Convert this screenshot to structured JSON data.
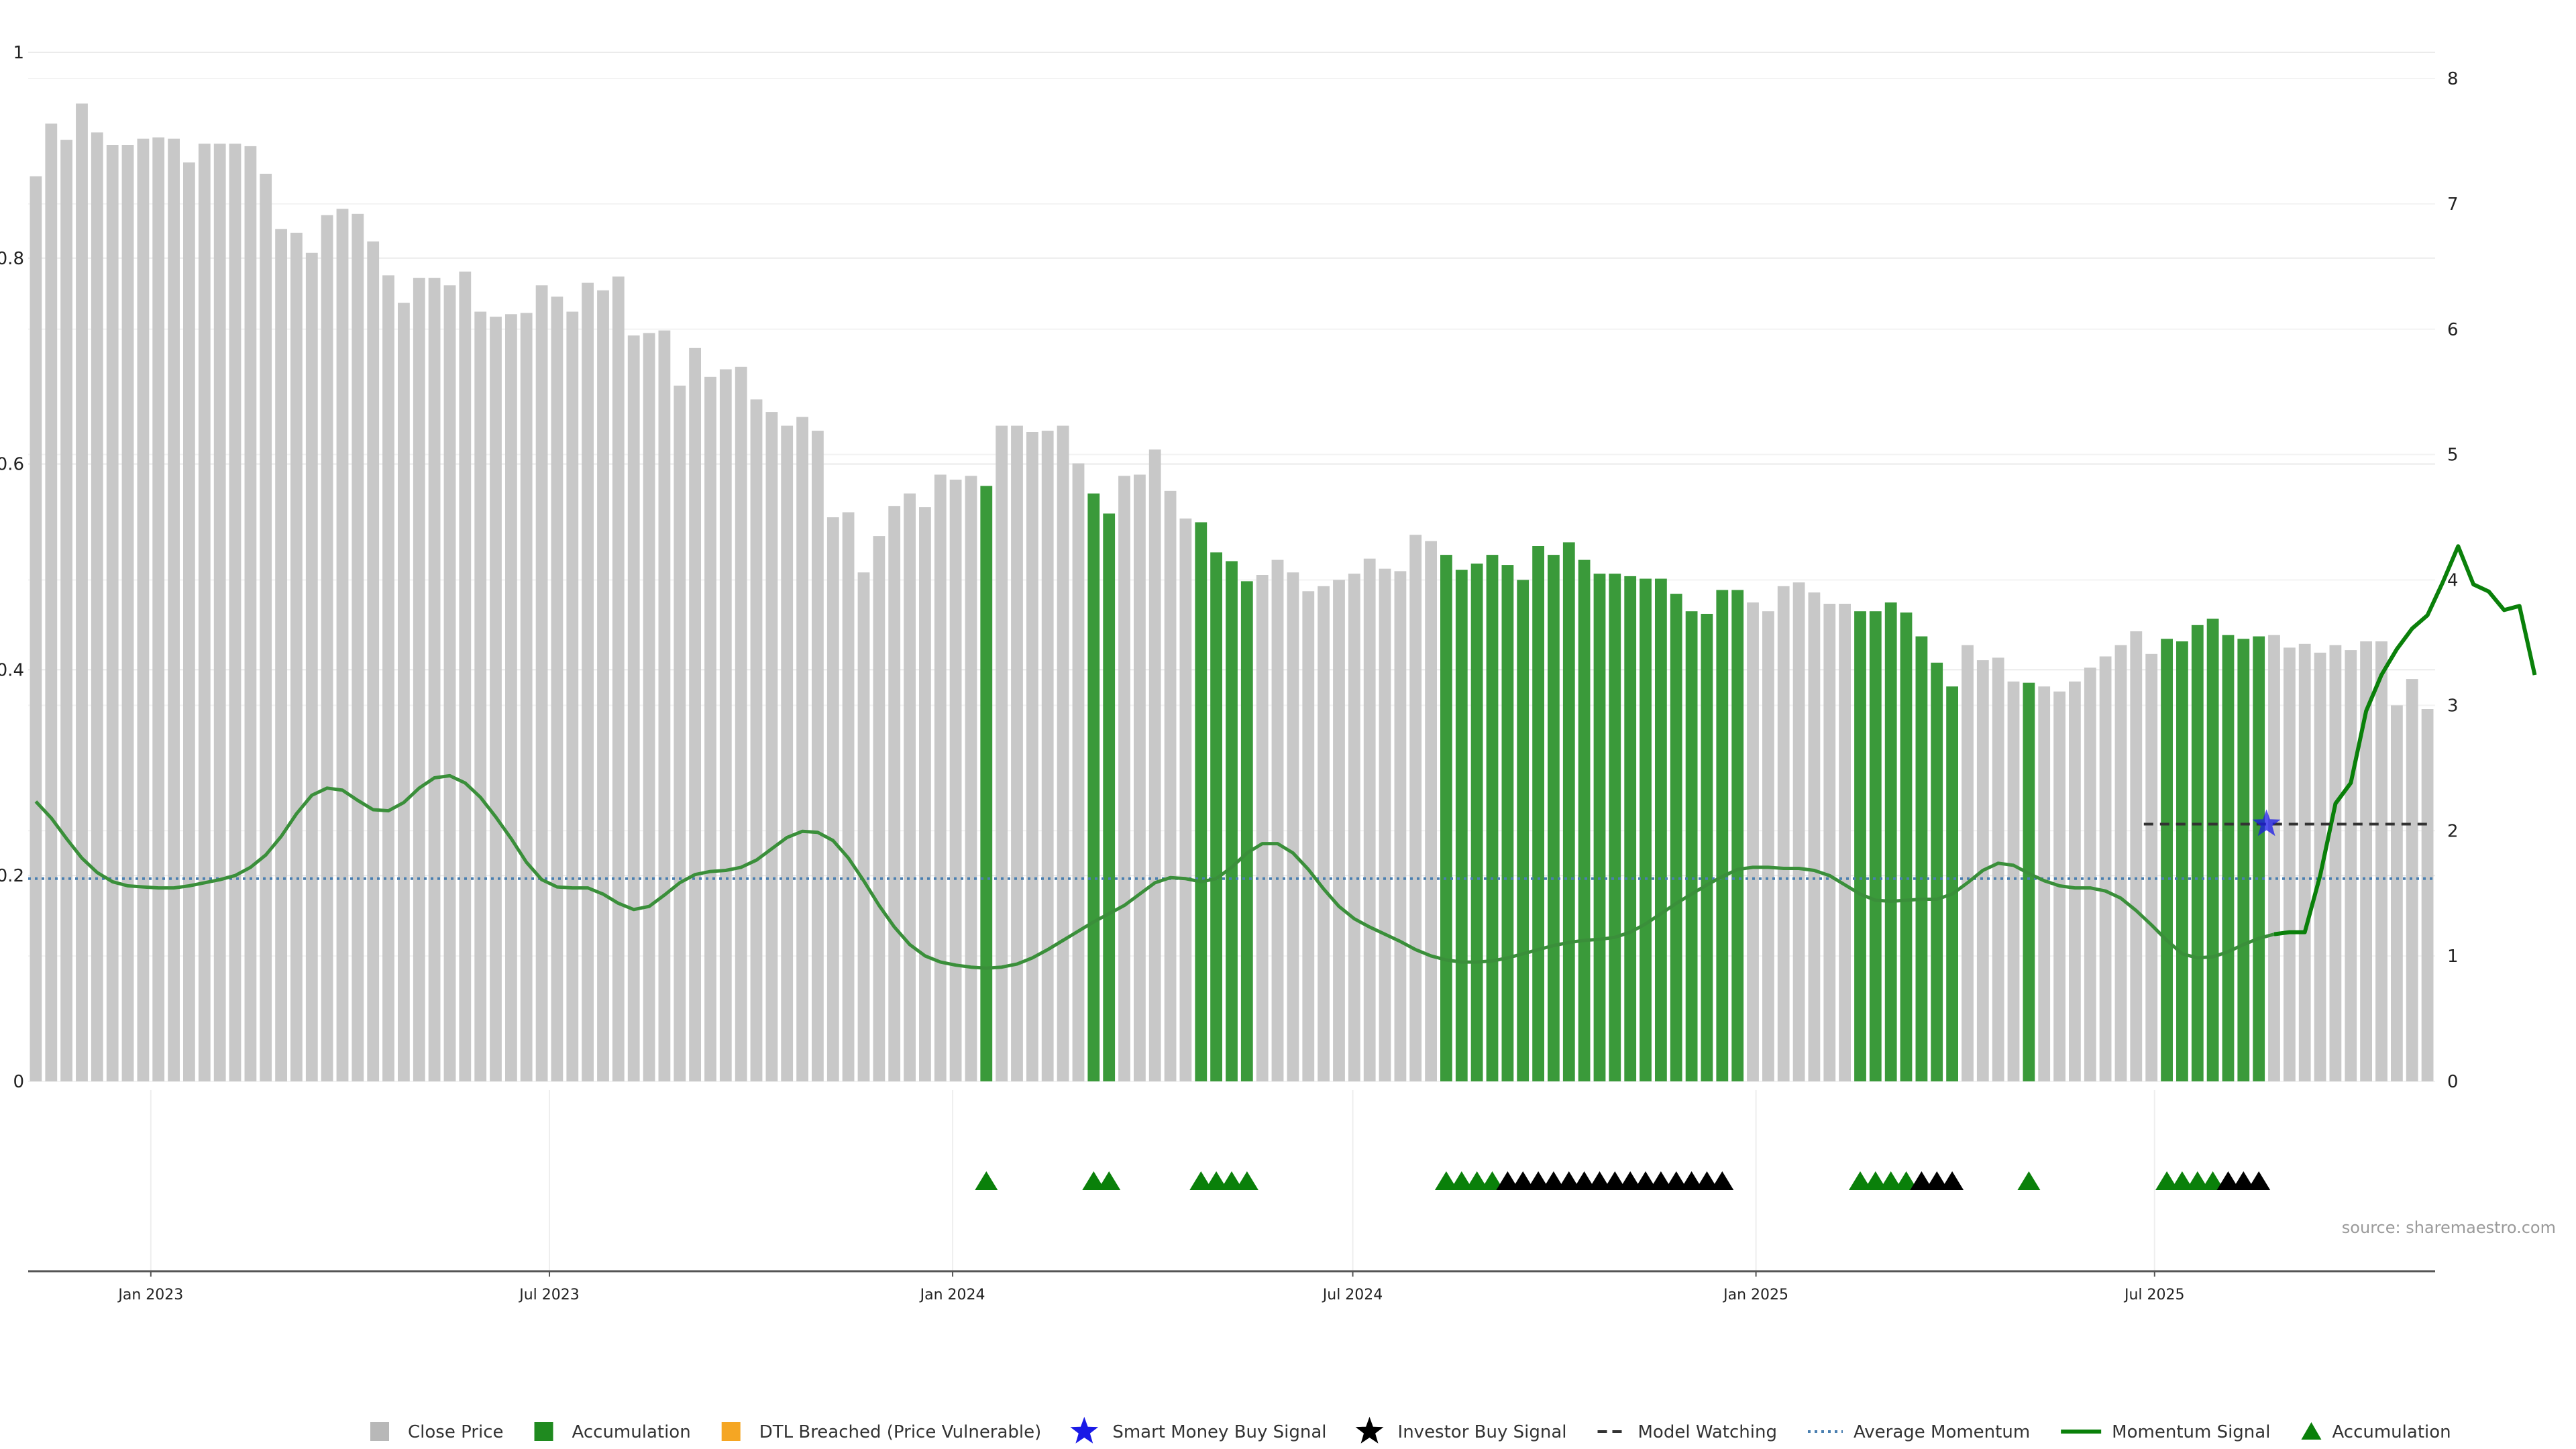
{
  "chart_data": {
    "type": "bar",
    "source_note": "source: sharemaestro.com",
    "left_axis": {
      "ylim": [
        0,
        1
      ],
      "ticks": [
        "0",
        "0.2",
        "0.4",
        "0.6",
        "0.8",
        "1"
      ]
    },
    "right_axis": {
      "ylim": [
        0,
        8
      ],
      "ticks": [
        "0",
        "1",
        "2",
        "3",
        "4",
        "5",
        "6",
        "7",
        "8"
      ]
    },
    "x_axis": {
      "ticks": [
        {
          "label": "Jan 2023",
          "index": 7.5
        },
        {
          "label": "Jul 2023",
          "index": 33.5
        },
        {
          "label": "Jan 2024",
          "index": 59.8
        },
        {
          "label": "Jul 2024",
          "index": 85.9
        },
        {
          "label": "Jan 2025",
          "index": 112.2
        },
        {
          "label": "Jul 2025",
          "index": 138.2
        }
      ]
    },
    "close_price": [
      7.22,
      7.64,
      7.51,
      7.8,
      7.57,
      7.47,
      7.47,
      7.52,
      7.53,
      7.52,
      7.33,
      7.48,
      7.48,
      7.48,
      7.46,
      7.24,
      6.8,
      6.77,
      6.61,
      6.91,
      6.96,
      6.92,
      6.7,
      6.43,
      6.21,
      6.41,
      6.41,
      6.35,
      6.46,
      6.14,
      6.1,
      6.12,
      6.13,
      6.35,
      6.26,
      6.14,
      6.37,
      6.31,
      6.42,
      5.95,
      5.97,
      5.99,
      5.55,
      5.85,
      5.62,
      5.68,
      5.7,
      5.44,
      5.34,
      5.23,
      5.3,
      5.19,
      4.5,
      4.54,
      4.06,
      4.35,
      4.59,
      4.69,
      4.58,
      4.84,
      4.8,
      4.83,
      4.75,
      5.23,
      5.23,
      5.18,
      5.19,
      5.23,
      4.93,
      4.69,
      4.53,
      4.83,
      4.84,
      5.04,
      4.71,
      4.49,
      4.46,
      4.22,
      4.15,
      3.99,
      4.04,
      4.16,
      4.06,
      3.91,
      3.95,
      4.0,
      4.05,
      4.17,
      4.09,
      4.07,
      4.36,
      4.31,
      4.2,
      4.08,
      4.13,
      4.2,
      4.12,
      4.0,
      4.27,
      4.2,
      4.3,
      4.16,
      4.05,
      4.05,
      4.03,
      4.01,
      4.01,
      3.89,
      3.75,
      3.73,
      3.92,
      3.92,
      3.82,
      3.75,
      3.95,
      3.98,
      3.9,
      3.81,
      3.81,
      3.75,
      3.75,
      3.82,
      3.74,
      3.55,
      3.34,
      3.15,
      3.48,
      3.36,
      3.38,
      3.19,
      3.18,
      3.15,
      3.11,
      3.19,
      3.3,
      3.39,
      3.48,
      3.59,
      3.41,
      3.53,
      3.51,
      3.64,
      3.69,
      3.56,
      3.53,
      3.55,
      3.56,
      3.46,
      3.49,
      3.42,
      3.48,
      3.44,
      3.51,
      3.51,
      3.0,
      3.21,
      2.97
    ],
    "accumulation_bars": [
      62,
      69,
      70,
      76,
      77,
      78,
      79,
      92,
      93,
      94,
      95,
      96,
      97,
      98,
      99,
      100,
      101,
      102,
      103,
      104,
      105,
      106,
      107,
      108,
      109,
      110,
      111,
      119,
      120,
      121,
      122,
      123,
      124,
      125,
      130,
      139,
      140,
      141,
      142,
      143,
      144,
      145
    ],
    "momentum_signal": [
      0.272,
      0.256,
      0.236,
      0.217,
      0.203,
      0.194,
      0.19,
      0.189,
      0.188,
      0.188,
      0.19,
      0.193,
      0.196,
      0.2,
      0.208,
      0.22,
      0.238,
      0.26,
      0.278,
      0.285,
      0.283,
      0.273,
      0.264,
      0.263,
      0.271,
      0.285,
      0.295,
      0.297,
      0.29,
      0.276,
      0.257,
      0.236,
      0.213,
      0.196,
      0.189,
      0.188,
      0.188,
      0.182,
      0.173,
      0.167,
      0.17,
      0.181,
      0.193,
      0.201,
      0.204,
      0.205,
      0.208,
      0.215,
      0.226,
      0.237,
      0.243,
      0.242,
      0.234,
      0.217,
      0.195,
      0.171,
      0.15,
      0.133,
      0.122,
      0.116,
      0.113,
      0.111,
      0.11,
      0.111,
      0.114,
      0.12,
      0.128,
      0.137,
      0.146,
      0.155,
      0.163,
      0.171,
      0.182,
      0.193,
      0.198,
      0.197,
      0.194,
      0.197,
      0.208,
      0.222,
      0.231,
      0.231,
      0.222,
      0.206,
      0.187,
      0.17,
      0.158,
      0.15,
      0.143,
      0.136,
      0.128,
      0.122,
      0.118,
      0.116,
      0.116,
      0.117,
      0.12,
      0.124,
      0.128,
      0.132,
      0.135,
      0.137,
      0.138,
      0.14,
      0.145,
      0.153,
      0.163,
      0.173,
      0.182,
      0.191,
      0.199,
      0.206,
      0.208,
      0.208,
      0.207,
      0.207,
      0.205,
      0.2,
      0.191,
      0.182,
      0.176,
      0.175,
      0.176,
      0.177,
      0.177,
      0.182,
      0.193,
      0.205,
      0.212,
      0.21,
      0.202,
      0.195,
      0.19,
      0.188,
      0.188,
      0.185,
      0.178,
      0.166,
      0.152,
      0.137,
      0.124,
      0.12,
      0.121,
      0.126,
      0.133,
      0.139,
      0.143,
      0.145,
      0.145,
      0.2,
      0.27,
      0.29,
      0.36,
      0.395,
      0.42,
      0.44,
      0.453,
      0.485,
      0.52,
      0.483,
      0.476,
      0.458,
      0.462,
      0.395
    ],
    "average_momentum": 0.197,
    "model_watching": {
      "from_index": 137.5,
      "to_index": 156,
      "value": 0.25
    },
    "smart_money_buy_signal": [
      {
        "index": 145.5,
        "value": 0.25
      }
    ],
    "signals": {
      "accumulation_markers": [
        62,
        69,
        70,
        76,
        77,
        78,
        79,
        92,
        93,
        94,
        95,
        119,
        120,
        121,
        122,
        130,
        139,
        140,
        141,
        142
      ],
      "investor_buy_markers": [
        96,
        97,
        98,
        99,
        100,
        101,
        102,
        103,
        104,
        105,
        106,
        107,
        108,
        109,
        110,
        123,
        124,
        125,
        143,
        144,
        145
      ]
    },
    "colors": {
      "close_price": "#c8c8c8",
      "accumulation_bar": "#3a9a3a",
      "dtl_breached": "#f5a623",
      "smart_money": "#1a1ae6",
      "investor_buy": "#000000",
      "model_watching": "#333333",
      "average_momentum": "#4a7fb0",
      "momentum_signal": "#3a8f3a",
      "momentum_signal_recent": "#0a800a",
      "accumulation_marker": "#0a800a",
      "grid": "#ebebeb"
    },
    "legend": [
      {
        "label": "Close Price",
        "marker": "square",
        "color": "#b8b8b8"
      },
      {
        "label": "Accumulation",
        "marker": "square",
        "color": "#1f8a1f"
      },
      {
        "label": "DTL Breached (Price Vulnerable)",
        "marker": "square",
        "color": "#f5a623"
      },
      {
        "label": "Smart Money Buy Signal",
        "marker": "star",
        "color": "#1a1ae6"
      },
      {
        "label": "Investor Buy Signal",
        "marker": "star",
        "color": "#000000"
      },
      {
        "label": "Model Watching",
        "marker": "dash",
        "color": "#333333"
      },
      {
        "label": "Average Momentum",
        "marker": "dot",
        "color": "#4a7fb0"
      },
      {
        "label": "Momentum Signal",
        "marker": "line",
        "color": "#0a800a"
      },
      {
        "label": "Accumulation",
        "marker": "triangle",
        "color": "#0a800a"
      }
    ]
  }
}
